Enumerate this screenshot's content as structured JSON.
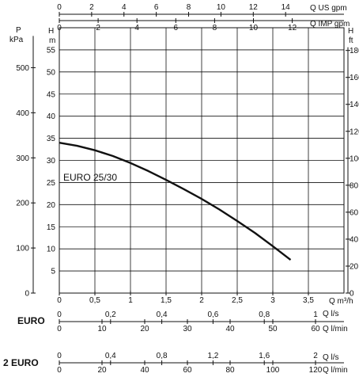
{
  "chart_data": {
    "type": "line",
    "series": [
      {
        "name": "EURO 25/30",
        "x": [
          0,
          0.25,
          0.5,
          0.75,
          1.0,
          1.25,
          1.5,
          1.75,
          2.0,
          2.25,
          2.5,
          2.75,
          3.0,
          3.25
        ],
        "y": [
          34,
          33.3,
          32.3,
          31,
          29.4,
          27.6,
          25.6,
          23.5,
          21.3,
          18.9,
          16.3,
          13.6,
          10.6,
          7.5
        ]
      }
    ],
    "annotation": "EURO  25/30",
    "grid": true,
    "axes": {
      "q_m3h": {
        "unit": "Q m³/h",
        "range": [
          0,
          4
        ],
        "ticks": [
          {
            "v": 0,
            "label": "0"
          },
          {
            "v": 0.5,
            "label": "0,5"
          },
          {
            "v": 1,
            "label": "1"
          },
          {
            "v": 1.5,
            "label": "1,5"
          },
          {
            "v": 2,
            "label": "2"
          },
          {
            "v": 2.5,
            "label": "2,5"
          },
          {
            "v": 3,
            "label": "3"
          },
          {
            "v": 3.5,
            "label": "3,5"
          }
        ]
      },
      "head_m": {
        "unit": "m",
        "range": [
          0,
          60
        ],
        "ticks": [
          0,
          5,
          10,
          15,
          20,
          25,
          30,
          35,
          40,
          45,
          50,
          55
        ]
      },
      "pressure_kpa": {
        "unit": "kPa",
        "top_label": "P",
        "ticks": [
          0,
          100,
          200,
          300,
          400,
          500
        ]
      },
      "head_ft": {
        "unit": "ft",
        "top_label": "H",
        "ticks": [
          0,
          20,
          40,
          60,
          80,
          100,
          120,
          140,
          160,
          180
        ]
      },
      "q_us_gpm": {
        "unit": "Q US gpm",
        "ticks": [
          0,
          2,
          4,
          6,
          8,
          10,
          12,
          14
        ]
      },
      "q_imp_gpm": {
        "unit": "Q IMP gpm",
        "ticks": [
          0,
          2,
          4,
          6,
          8,
          10,
          12
        ]
      },
      "euro_ls": {
        "unit": "Q l/s",
        "ticks": [
          {
            "v": 0,
            "label": "0"
          },
          {
            "v": 0.2,
            "label": "0,2"
          },
          {
            "v": 0.4,
            "label": "0,4"
          },
          {
            "v": 0.6,
            "label": "0,6"
          },
          {
            "v": 0.8,
            "label": "0,8"
          },
          {
            "v": 1,
            "label": "1"
          }
        ]
      },
      "euro_lmin": {
        "unit": "Q l/min",
        "ticks": [
          0,
          10,
          20,
          30,
          40,
          50,
          60
        ]
      },
      "euro2_ls": {
        "unit": "Q l/s",
        "ticks": [
          {
            "v": 0,
            "label": "0"
          },
          {
            "v": 0.4,
            "label": "0,4"
          },
          {
            "v": 0.8,
            "label": "0,8"
          },
          {
            "v": 1.2,
            "label": "1,2"
          },
          {
            "v": 1.6,
            "label": "1,6"
          },
          {
            "v": 2,
            "label": "2"
          }
        ]
      },
      "euro2_lmin": {
        "unit": "Q l/min",
        "ticks": [
          0,
          20,
          40,
          60,
          80,
          100,
          120
        ]
      }
    },
    "scale_labels": {
      "euro": "EURO",
      "euro2": "2 EURO",
      "head_top": "H"
    }
  }
}
